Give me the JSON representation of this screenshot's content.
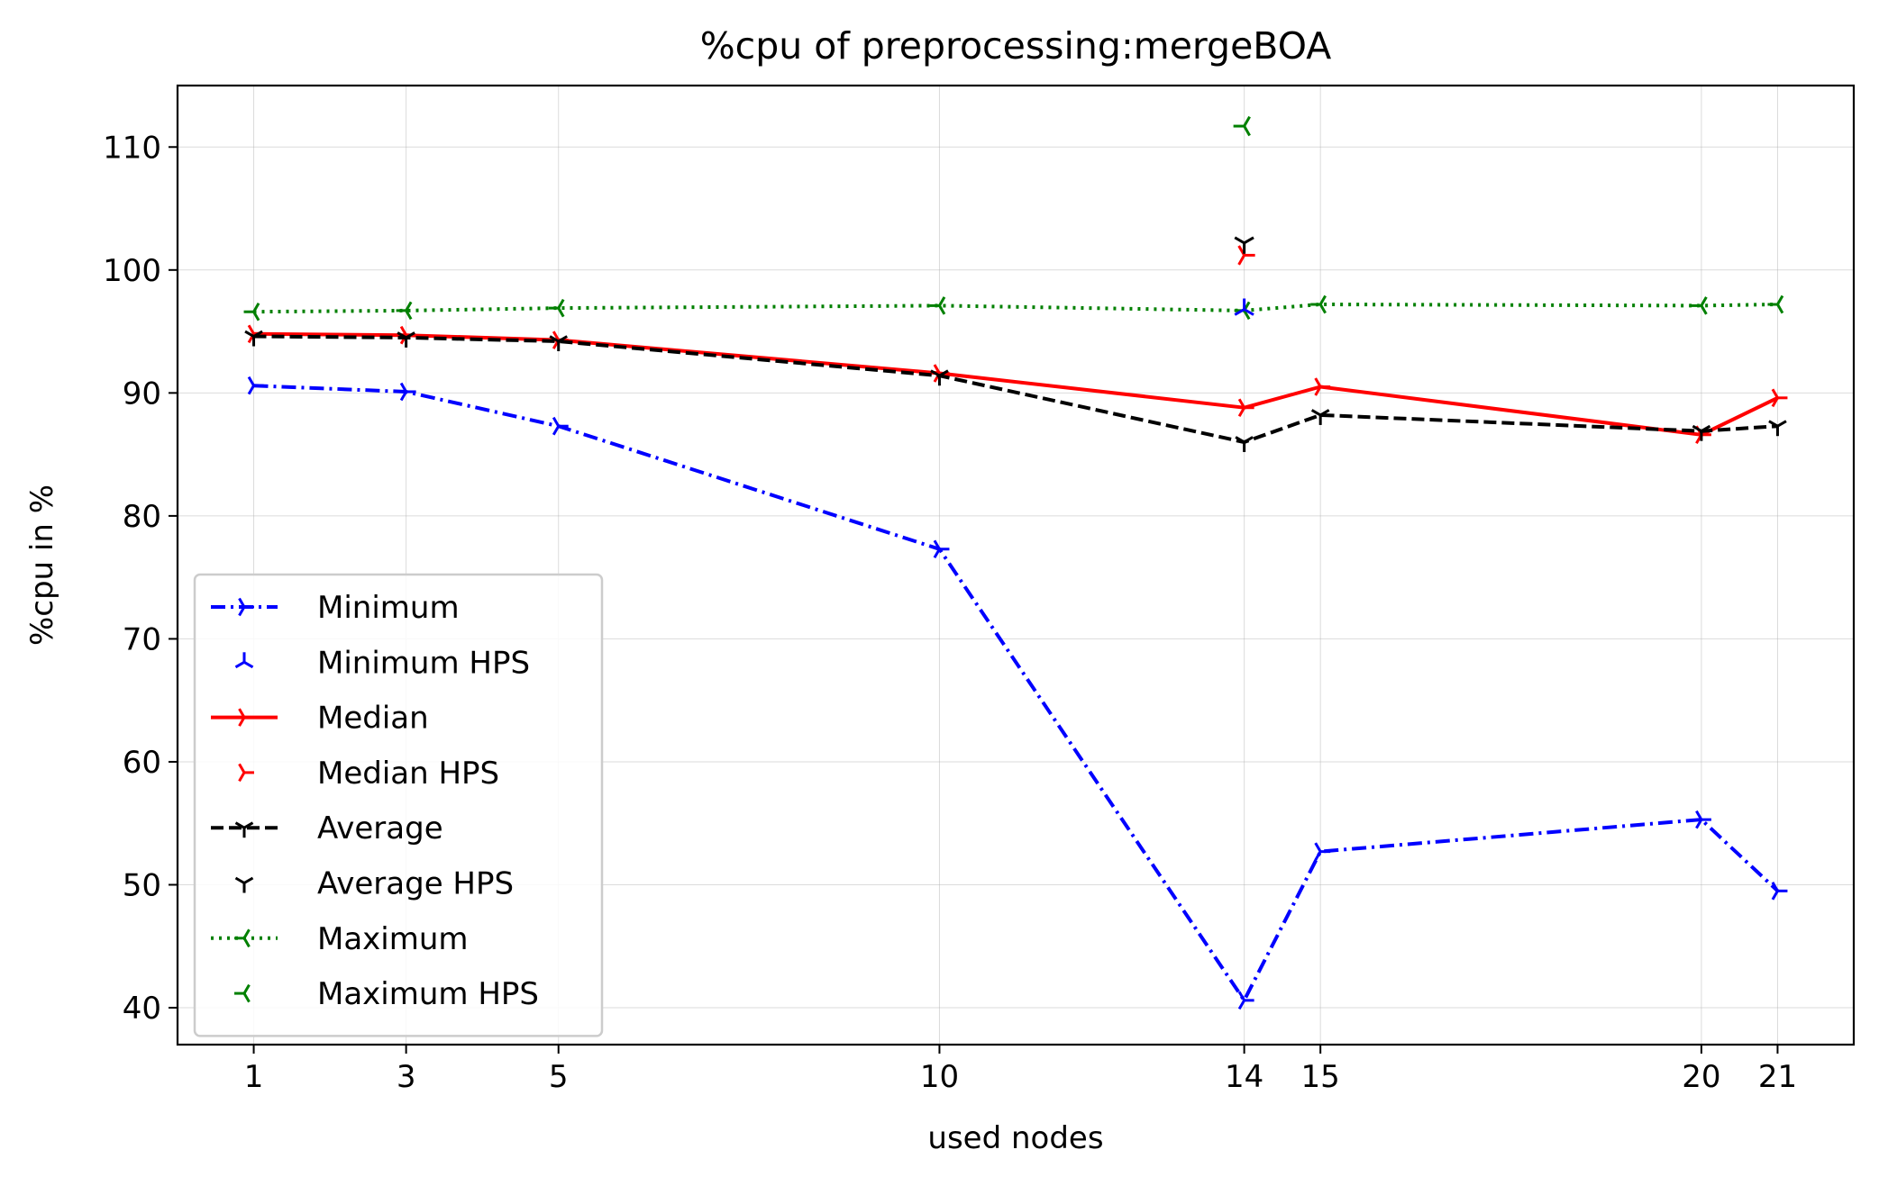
{
  "chart_data": {
    "type": "line",
    "title": "%cpu of preprocessing:mergeBOA",
    "xlabel": "used nodes",
    "ylabel": "%cpu in %",
    "xlim": [
      0,
      22
    ],
    "ylim": [
      37,
      115
    ],
    "xticks": [
      1,
      3,
      5,
      10,
      14,
      15,
      20,
      21
    ],
    "yticks": [
      40,
      50,
      60,
      70,
      80,
      90,
      100,
      110
    ],
    "grid": true,
    "legend_position": "lower-left",
    "x": [
      1,
      3,
      5,
      10,
      14,
      15,
      20,
      21
    ],
    "series": [
      {
        "name": "Minimum",
        "color": "#0000ff",
        "dash": "dashdot",
        "marker": "tri_right",
        "values": [
          90.6,
          90.1,
          87.3,
          77.3,
          40.6,
          52.7,
          55.3,
          49.5
        ]
      },
      {
        "name": "Median",
        "color": "#ff0000",
        "dash": "solid",
        "marker": "tri_right",
        "values": [
          94.8,
          94.7,
          94.3,
          91.6,
          88.8,
          90.5,
          86.6,
          89.6
        ]
      },
      {
        "name": "Average",
        "color": "#000000",
        "dash": "dashed",
        "marker": "tri_down",
        "values": [
          94.6,
          94.5,
          94.2,
          91.4,
          86.0,
          88.2,
          86.9,
          87.3
        ]
      },
      {
        "name": "Maximum",
        "color": "#008000",
        "dash": "dotted",
        "marker": "tri_left",
        "values": [
          96.6,
          96.7,
          96.9,
          97.1,
          96.7,
          97.2,
          97.1,
          97.2
        ]
      }
    ],
    "hps_points": [
      {
        "name": "Minimum HPS",
        "color": "#0000ff",
        "marker": "tri_up",
        "x": 14,
        "y": 96.8
      },
      {
        "name": "Median HPS",
        "color": "#ff0000",
        "marker": "tri_right",
        "x": 14,
        "y": 101.2
      },
      {
        "name": "Average HPS",
        "color": "#000000",
        "marker": "tri_down",
        "x": 14,
        "y": 102.2
      },
      {
        "name": "Maximum HPS",
        "color": "#008000",
        "marker": "tri_left",
        "x": 14,
        "y": 111.7
      }
    ],
    "legend": [
      {
        "label": "Minimum",
        "color": "#0000ff",
        "dash": "dashdot",
        "marker": "tri_right",
        "line": true
      },
      {
        "label": "Minimum HPS",
        "color": "#0000ff",
        "marker": "tri_up",
        "line": false
      },
      {
        "label": "Median",
        "color": "#ff0000",
        "dash": "solid",
        "marker": "tri_right",
        "line": true
      },
      {
        "label": "Median HPS",
        "color": "#ff0000",
        "marker": "tri_right",
        "line": false
      },
      {
        "label": "Average",
        "color": "#000000",
        "dash": "dashed",
        "marker": "tri_down",
        "line": true
      },
      {
        "label": "Average HPS",
        "color": "#000000",
        "marker": "tri_down",
        "line": false
      },
      {
        "label": "Maximum",
        "color": "#008000",
        "dash": "dotted",
        "marker": "tri_left",
        "line": true
      },
      {
        "label": "Maximum HPS",
        "color": "#008000",
        "marker": "tri_left",
        "line": false
      }
    ]
  }
}
